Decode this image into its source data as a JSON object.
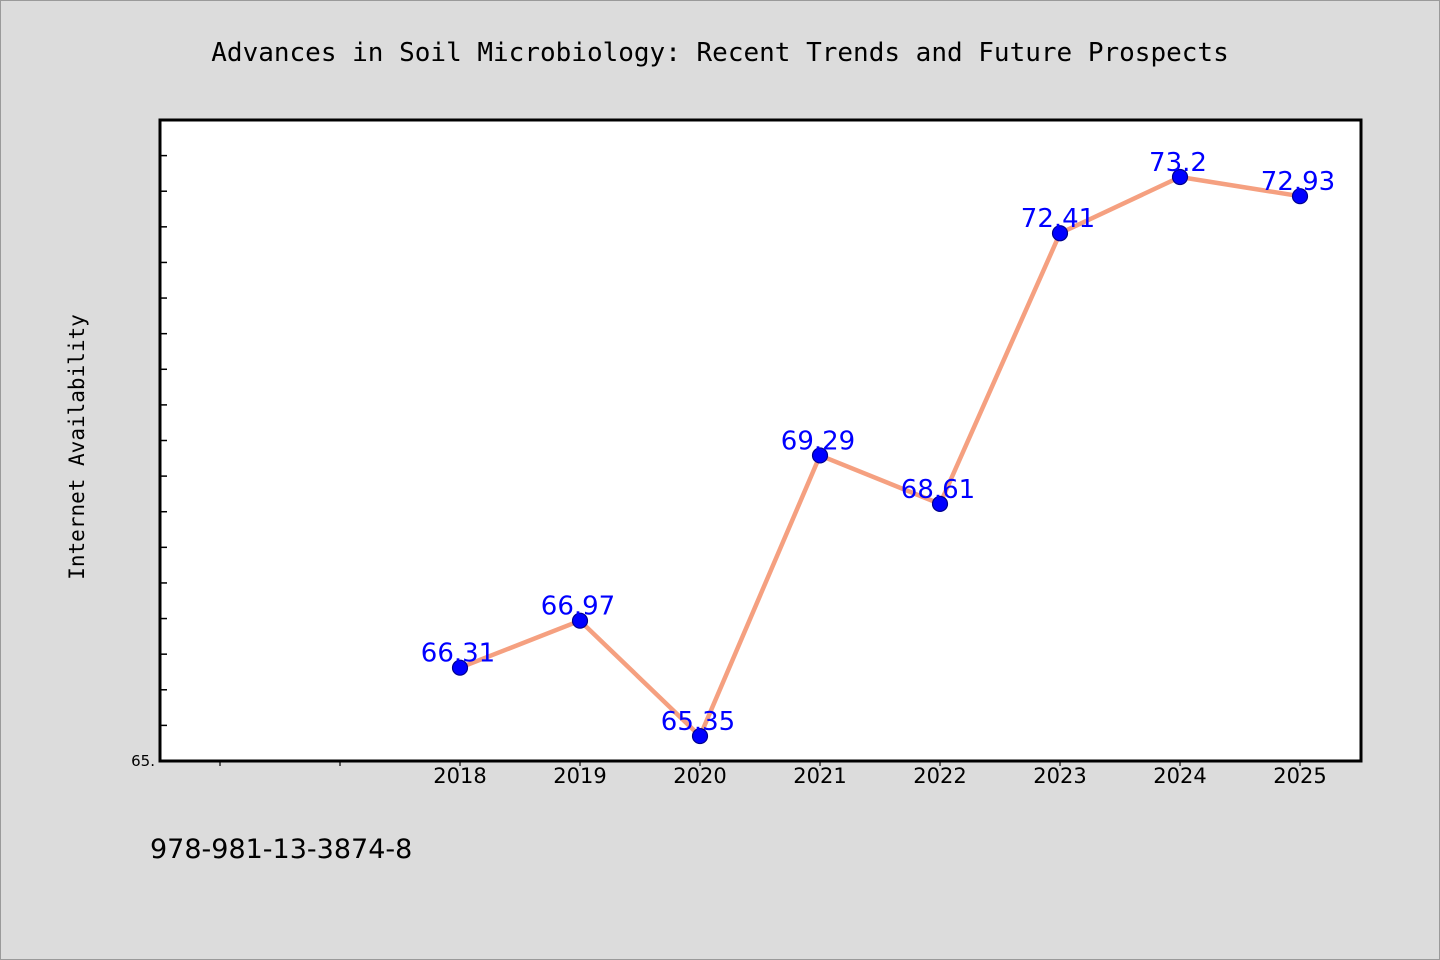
{
  "chart_data": {
    "type": "line",
    "title": "Advances in Soil Microbiology: Recent Trends and Future Prospects",
    "xlabel": "",
    "ylabel": "Internet Availability",
    "categories": [
      "2018",
      "2019",
      "2020",
      "2021",
      "2022",
      "2023",
      "2024",
      "2025"
    ],
    "series": [
      {
        "values": [
          66.31,
          66.97,
          65.35,
          69.29,
          68.61,
          72.41,
          73.2,
          72.93
        ]
      }
    ],
    "data_labels": [
      "66.31",
      "66.97",
      "65.35",
      "69.29",
      "68.61",
      "72.41",
      "73.2",
      "72.93"
    ],
    "y_tick_labels": [
      "65."
    ],
    "ylim": [
      65.0,
      74.0
    ],
    "grid": false,
    "legend": "none",
    "colors": {
      "line": "#f5a080",
      "marker": "#0000ff",
      "label": "#0000ff",
      "background": "#dcdcdc",
      "plot_area": "#ffffff"
    }
  },
  "footer": {
    "isbn": "978-981-13-3874-8"
  }
}
